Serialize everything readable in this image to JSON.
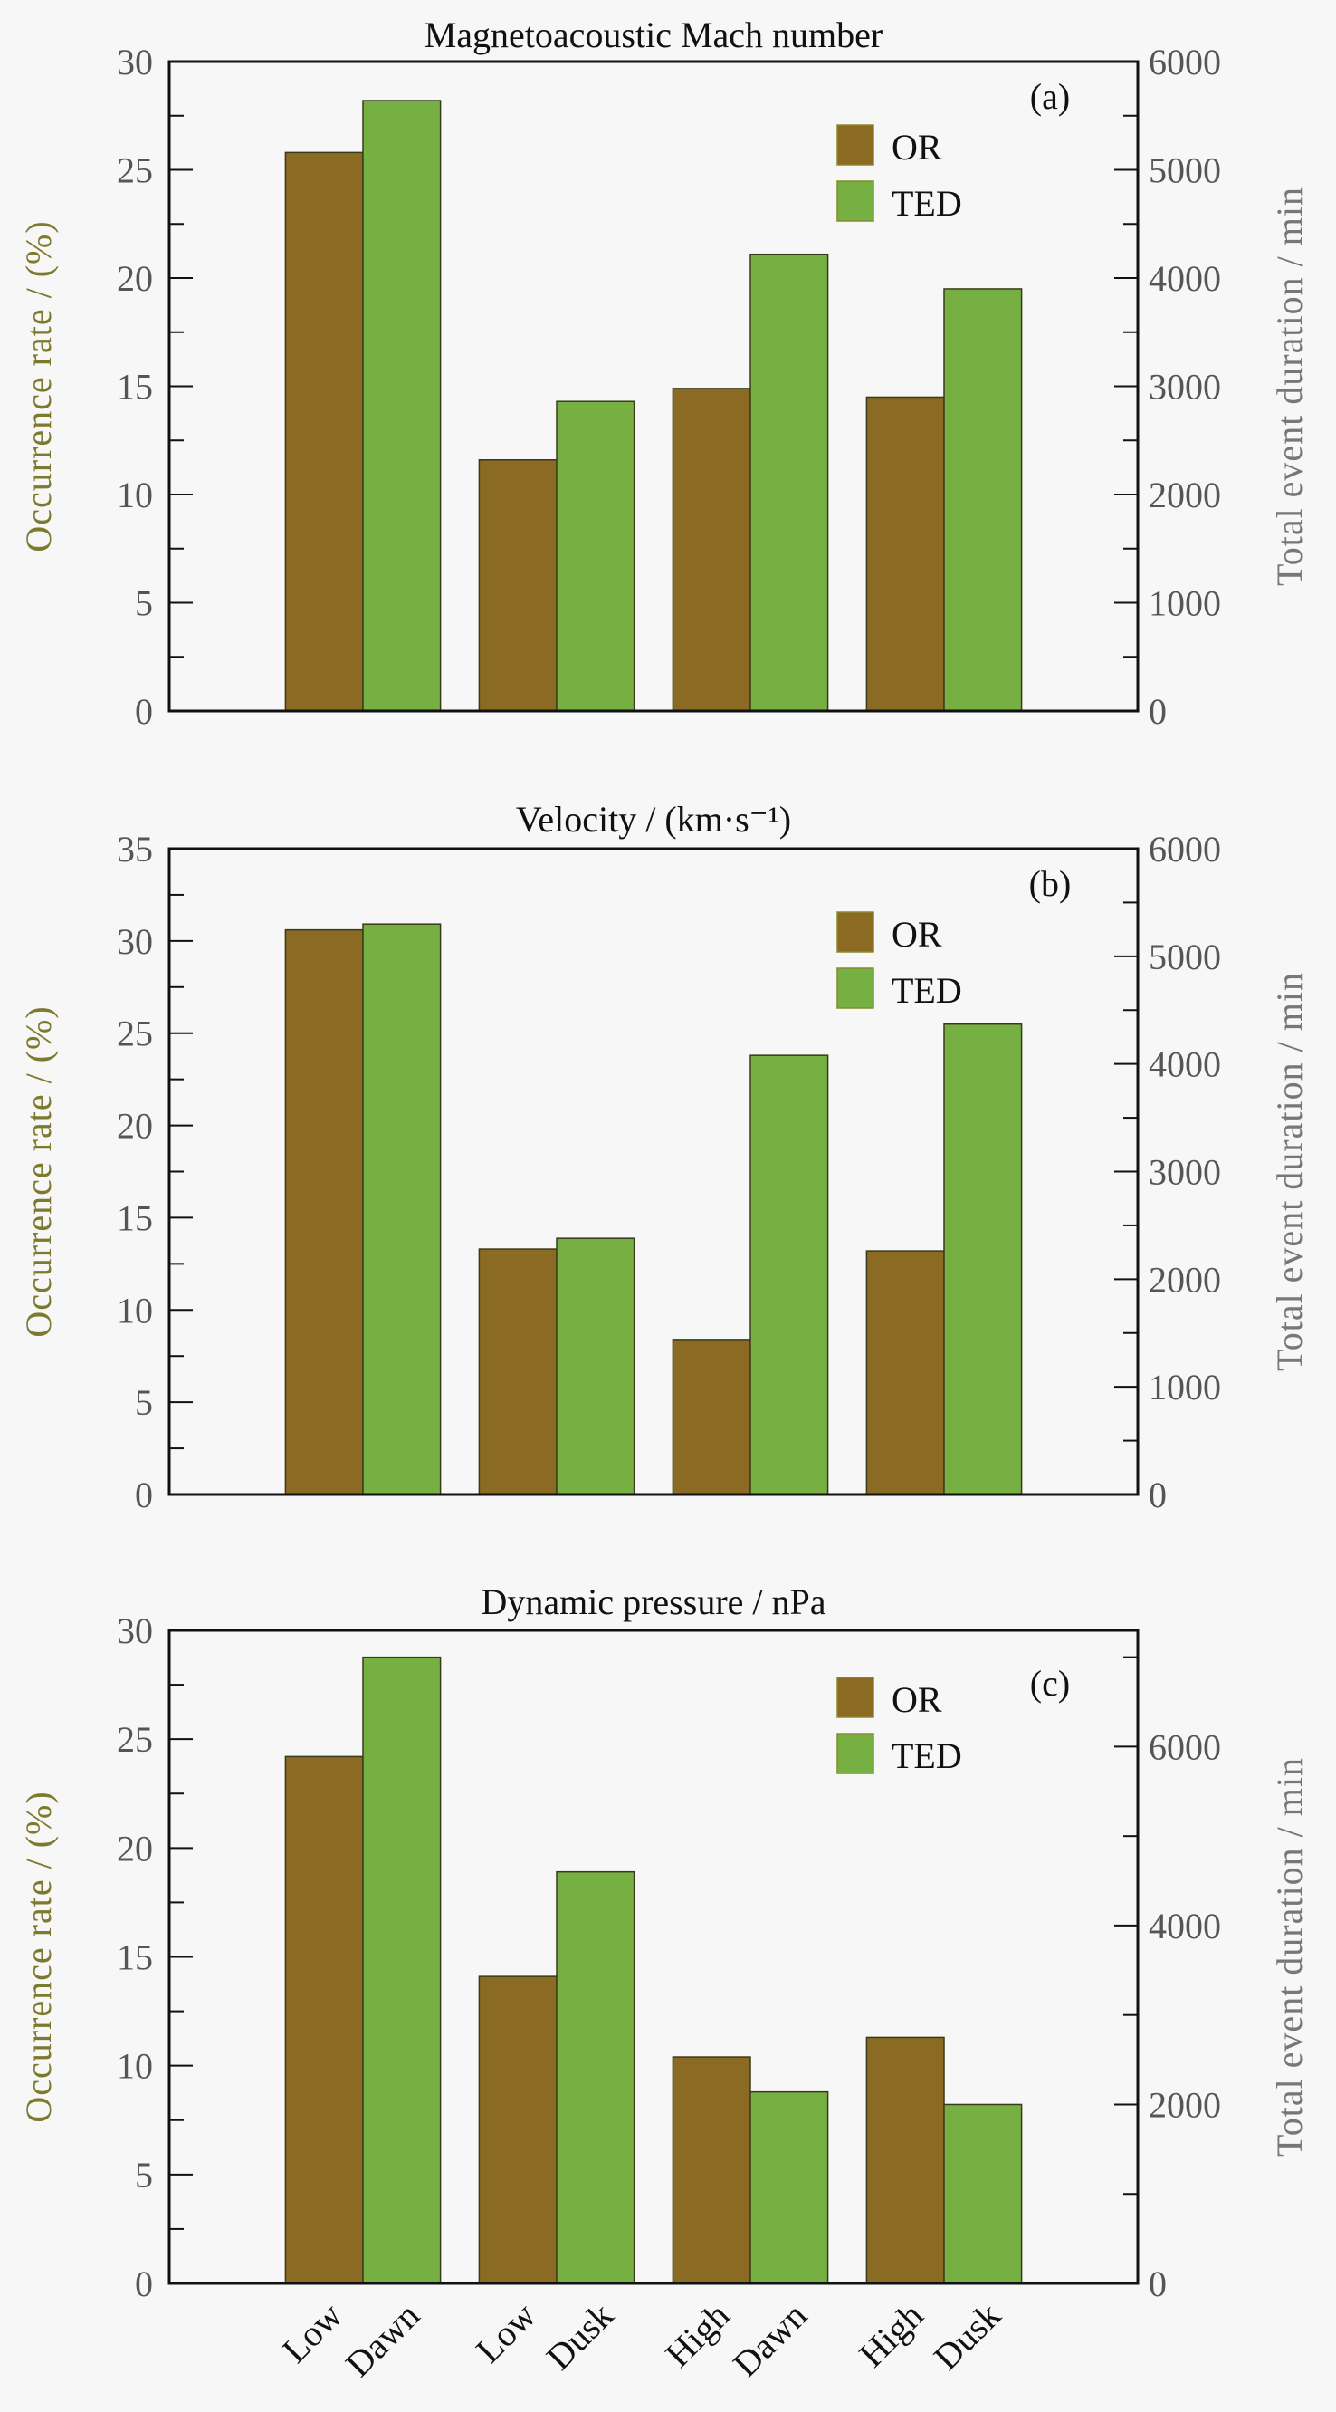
{
  "chart_data": [
    {
      "type": "bar",
      "panel_label": "(a)",
      "title": "Magnetoacoustic Mach number",
      "ylabel": "Occurrence rate / (%)",
      "ylabel_right": "Total event duration / min",
      "categories": [
        [
          "Low",
          "Dawn"
        ],
        [
          "Low",
          "Dusk"
        ],
        [
          "High",
          "Dawn"
        ],
        [
          "High",
          "Dusk"
        ]
      ],
      "ylim": [
        0,
        30
      ],
      "yticks": [
        0,
        5,
        10,
        15,
        20,
        25,
        30
      ],
      "yminor": 2.5,
      "ylim_right": [
        0,
        6000
      ],
      "yticks_right": [
        0,
        1000,
        2000,
        3000,
        4000,
        5000,
        6000
      ],
      "yminor_right": 500,
      "series": [
        {
          "name": "OR",
          "axis": "left",
          "color": "#8b6a23",
          "values": [
            25.8,
            11.6,
            14.9,
            14.5
          ]
        },
        {
          "name": "TED",
          "axis": "right",
          "color": "#76b043",
          "values": [
            5640,
            2860,
            4220,
            3900
          ]
        }
      ],
      "legend": "top-right"
    },
    {
      "type": "bar",
      "panel_label": "(b)",
      "title": "Velocity / (km·s⁻¹)",
      "ylabel": "Occurrence rate / (%)",
      "ylabel_right": "Total event duration / min",
      "categories": [
        [
          "Low",
          "Dawn"
        ],
        [
          "Low",
          "Dusk"
        ],
        [
          "High",
          "Dawn"
        ],
        [
          "High",
          "Dusk"
        ]
      ],
      "ylim": [
        0,
        35
      ],
      "yticks": [
        0,
        5,
        10,
        15,
        20,
        25,
        30,
        35
      ],
      "yminor": 2.5,
      "ylim_right": [
        0,
        6000
      ],
      "yticks_right": [
        0,
        1000,
        2000,
        3000,
        4000,
        5000,
        6000
      ],
      "yminor_right": 500,
      "series": [
        {
          "name": "OR",
          "axis": "left",
          "color": "#8b6a23",
          "values": [
            30.6,
            13.3,
            8.4,
            13.2
          ]
        },
        {
          "name": "TED",
          "axis": "right",
          "color": "#76b043",
          "values": [
            5300,
            2380,
            4080,
            4370
          ]
        }
      ],
      "legend": "top-right"
    },
    {
      "type": "bar",
      "panel_label": "(c)",
      "title": "Dynamic pressure / nPa",
      "ylabel": "Occurrence rate / (%)",
      "ylabel_right": "Total event duration / min",
      "categories": [
        [
          "Low",
          "Dawn"
        ],
        [
          "Low",
          "Dusk"
        ],
        [
          "High",
          "Dawn"
        ],
        [
          "High",
          "Dusk"
        ]
      ],
      "ylim": [
        0,
        30
      ],
      "yticks": [
        0,
        5,
        10,
        15,
        20,
        25,
        30
      ],
      "yminor": 2.5,
      "ylim_right": [
        0,
        7300
      ],
      "yticks_right": [
        0,
        2000,
        4000,
        6000
      ],
      "yminor_right": 1000,
      "series": [
        {
          "name": "OR",
          "axis": "left",
          "color": "#8b6a23",
          "values": [
            24.2,
            14.1,
            10.4,
            11.3
          ]
        },
        {
          "name": "TED",
          "axis": "right",
          "color": "#76b043",
          "values": [
            7000,
            4600,
            2140,
            2000
          ]
        }
      ],
      "legend": "top-right",
      "show_xlabels": true
    }
  ]
}
